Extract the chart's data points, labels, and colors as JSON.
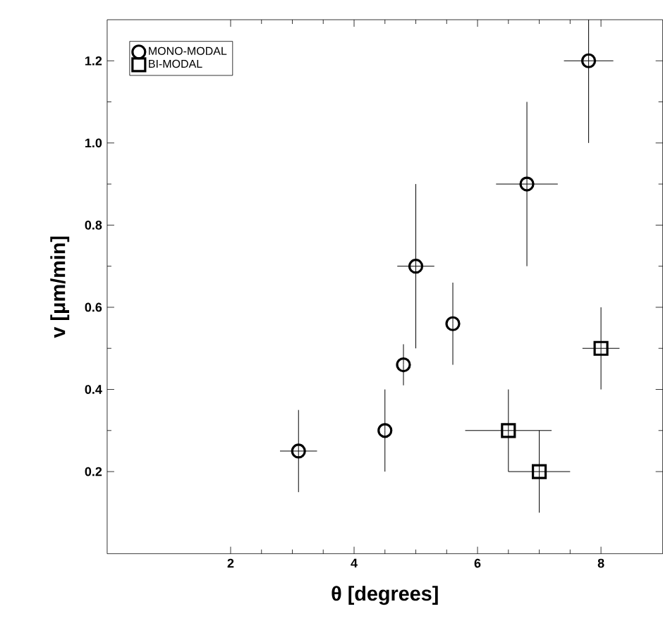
{
  "chart_data": {
    "type": "scatter",
    "xlabel": "θ  [degrees]",
    "ylabel": "v  [μm/min]",
    "xlim": [
      0,
      9
    ],
    "ylim": [
      0,
      1.3
    ],
    "xticks": [
      2,
      4,
      6,
      8
    ],
    "yticks": [
      {
        "value": 0.2,
        "label": "0.2"
      },
      {
        "value": 0.4,
        "label": "0.4"
      },
      {
        "value": 0.6,
        "label": "0.6"
      },
      {
        "value": 0.8,
        "label": "0.8"
      },
      {
        "value": 1.0,
        "label": "1.0"
      },
      {
        "value": 1.2,
        "label": "1.2"
      }
    ],
    "legend": "top left",
    "series": [
      {
        "name": "MONO-MODAL",
        "color": "#000000",
        "marker": "circle",
        "x": [
          3.1,
          4.5,
          4.8,
          5.0,
          5.6,
          6.8,
          7.8
        ],
        "values": [
          0.25,
          0.3,
          0.46,
          0.7,
          0.56,
          0.9,
          1.2
        ],
        "errors": [
          0.1,
          0.1,
          0.05,
          0.2,
          0.1,
          0.2,
          [
            1.0,
            1.3
          ]
        ],
        "xerrors": [
          0.3,
          null,
          null,
          0.3,
          null,
          0.5,
          0.4
        ]
      },
      {
        "name": "BI-MODAL",
        "color": "#000000",
        "marker": "square",
        "x": [
          6.5,
          7.0,
          8.0
        ],
        "values": [
          0.3,
          0.2,
          0.5
        ],
        "errors": [
          0.1,
          0.1,
          0.1
        ],
        "xerrors": [
          0.7,
          0.5,
          0.3
        ]
      }
    ]
  }
}
